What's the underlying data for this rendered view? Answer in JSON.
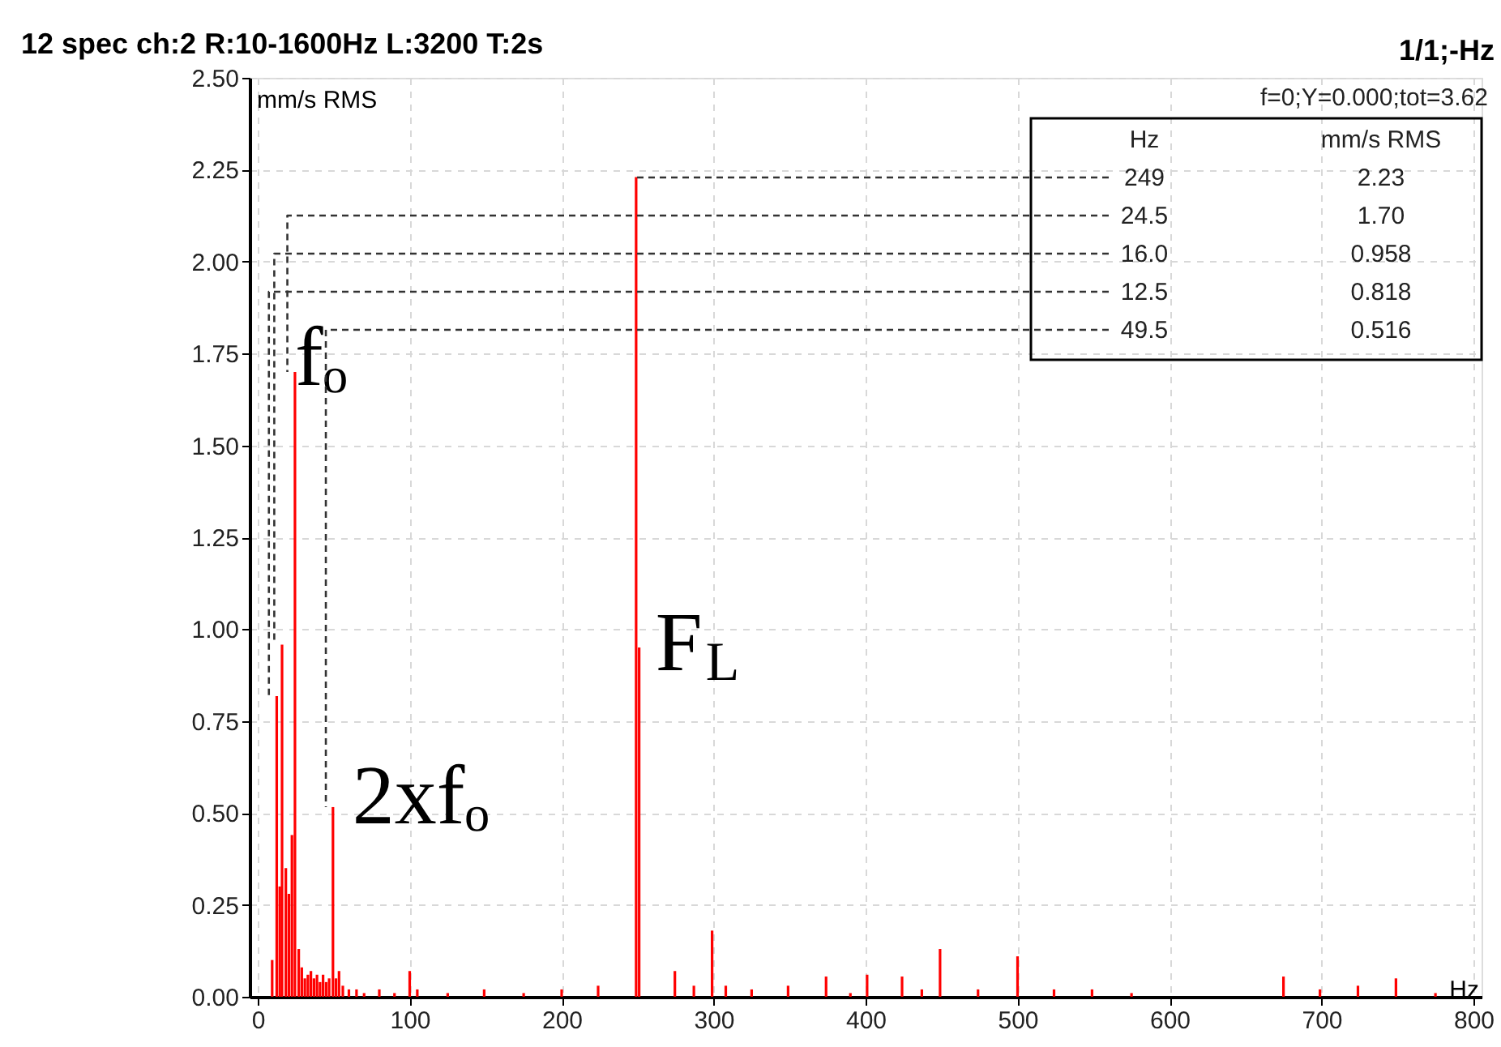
{
  "chart_data": {
    "type": "bar",
    "title": "12 spec ch:2 R:10-1600Hz L:3200 T:2s",
    "subtitle": "1/1;-Hz",
    "xlabel": "Hz",
    "ylabel": "mm/s RMS",
    "x": [
      9.5,
      12.5,
      14.5,
      16.0,
      18.5,
      20.5,
      22.5,
      24.5,
      27,
      29,
      31,
      33,
      35,
      37,
      39,
      41,
      43,
      45,
      47,
      49.5,
      51.5,
      53.5,
      56,
      60,
      65,
      70,
      80,
      90,
      100,
      105,
      125,
      149,
      175,
      200,
      224,
      249,
      251,
      274.5,
      287,
      299,
      308,
      325,
      349,
      374,
      390,
      401,
      424,
      437,
      449,
      474,
      500,
      524,
      549,
      575,
      675,
      699,
      724,
      749,
      775
    ],
    "series": [
      {
        "color": "#ff0000",
        "values": [
          0.1,
          0.818,
          0.3,
          0.958,
          0.35,
          0.28,
          0.44,
          1.7,
          0.13,
          0.08,
          0.05,
          0.06,
          0.07,
          0.05,
          0.06,
          0.04,
          0.06,
          0.04,
          0.05,
          0.516,
          0.05,
          0.07,
          0.03,
          0.02,
          0.02,
          0.01,
          0.02,
          0.01,
          0.07,
          0.02,
          0.01,
          0.02,
          0.01,
          0.02,
          0.03,
          2.23,
          0.95,
          0.07,
          0.03,
          0.18,
          0.03,
          0.02,
          0.03,
          0.055,
          0.01,
          0.06,
          0.055,
          0.02,
          0.13,
          0.02,
          0.11,
          0.02,
          0.02,
          0.01,
          0.055,
          0.02,
          0.03,
          0.05,
          0.01
        ]
      }
    ],
    "xlim": [
      0,
      800
    ],
    "xticks": [
      0,
      100,
      200,
      300,
      400,
      500,
      600,
      700,
      800
    ],
    "ylim": [
      0,
      2.5
    ],
    "yticks": [
      {
        "value": 0,
        "label": "0.00"
      },
      {
        "value": 0.25,
        "label": "0.25"
      },
      {
        "value": 0.5,
        "label": "0.50"
      },
      {
        "value": 0.75,
        "label": "0.75"
      },
      {
        "value": 1,
        "label": "1.00"
      },
      {
        "value": 1.25,
        "label": "1.25"
      },
      {
        "value": 1.5,
        "label": "1.50"
      },
      {
        "value": 1.75,
        "label": "1.75"
      },
      {
        "value": 2,
        "label": "2.00"
      },
      {
        "value": 2.25,
        "label": "2.25"
      },
      {
        "value": 2.5,
        "label": "2.50"
      }
    ],
    "grid": true,
    "annotations": [
      "f=0;Y=0.000;tot=3.62",
      {
        "text": "fₒ",
        "x": 24.5,
        "y": 1.7
      },
      {
        "text": "F$_{L}$",
        "x": 251,
        "y": 0.95
      },
      {
        "text": "2xfₒ",
        "x": 49.5,
        "y": 0.516
      },
      {
        "text": "249",
        "x": 249,
        "y": 2.23
      },
      "2.23",
      {
        "text": "24.5",
        "x": 24.5,
        "y": 1.7
      },
      "1.70",
      {
        "text": "16.0",
        "x": 16.0,
        "y": 0.958
      },
      "0.958",
      {
        "text": "12.5",
        "x": 12.5,
        "y": 0.818
      },
      "0.818",
      {
        "text": "49.5",
        "x": 49.5,
        "y": 0.516
      },
      "0.516"
    ]
  }
}
